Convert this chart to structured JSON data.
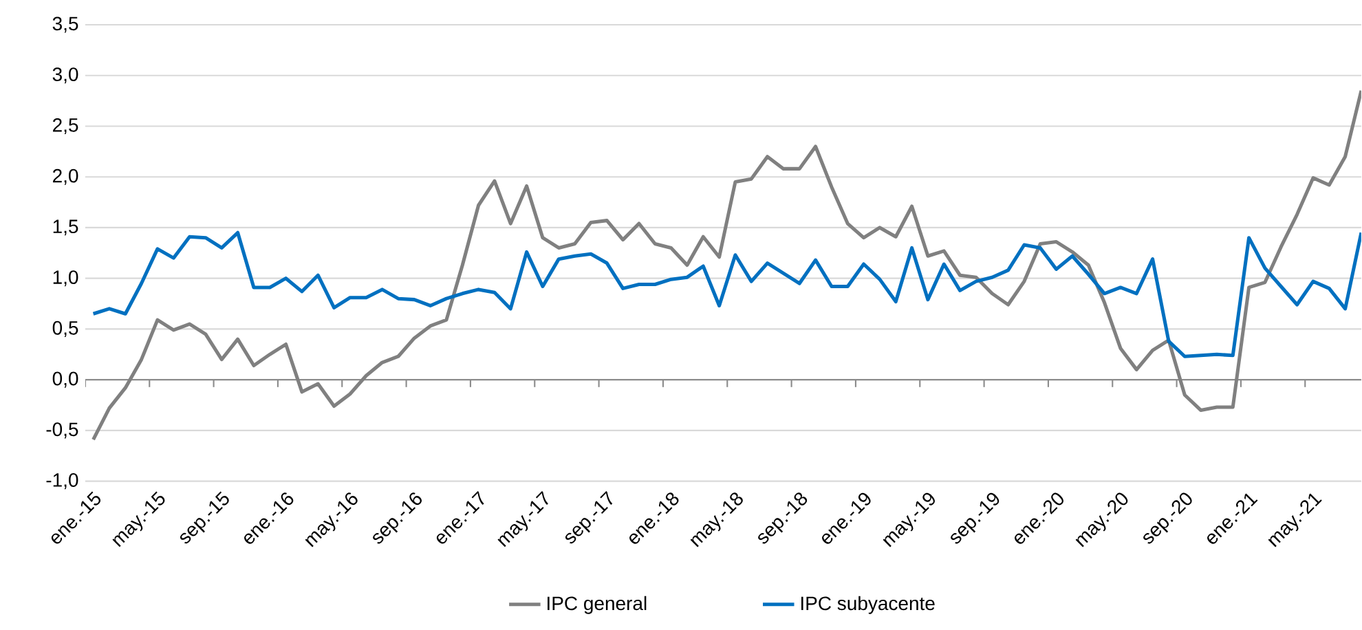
{
  "chart_data": {
    "type": "line",
    "categories": [
      "ene.-15",
      null,
      null,
      null,
      "may.-15",
      null,
      null,
      null,
      "sep.-15",
      null,
      null,
      null,
      "ene.-16",
      null,
      null,
      null,
      "may.-16",
      null,
      null,
      null,
      "sep.-16",
      null,
      null,
      null,
      "ene.-17",
      null,
      null,
      null,
      "may.-17",
      null,
      null,
      null,
      "sep.-17",
      null,
      null,
      null,
      "ene.-18",
      null,
      null,
      null,
      "may.-18",
      null,
      null,
      null,
      "sep.-18",
      null,
      null,
      null,
      "ene.-19",
      null,
      null,
      null,
      "may.-19",
      null,
      null,
      null,
      "sep.-19",
      null,
      null,
      null,
      "ene.-20",
      null,
      null,
      null,
      "may.-20",
      null,
      null,
      null,
      "sep.-20",
      null,
      null,
      null,
      "ene.-21",
      null,
      null,
      null,
      "may.-21",
      null,
      null,
      null
    ],
    "series": [
      {
        "name": "IPC general",
        "color": "#808080",
        "values": [
          -0.59,
          -0.28,
          -0.08,
          0.2,
          0.59,
          0.49,
          0.55,
          0.45,
          0.2,
          0.4,
          0.14,
          0.25,
          0.35,
          -0.12,
          -0.04,
          -0.26,
          -0.14,
          0.04,
          0.17,
          0.23,
          0.41,
          0.53,
          0.59,
          1.13,
          1.72,
          1.96,
          1.54,
          1.91,
          1.4,
          1.3,
          1.34,
          1.55,
          1.57,
          1.38,
          1.54,
          1.34,
          1.3,
          1.13,
          1.41,
          1.21,
          1.95,
          1.98,
          2.2,
          2.08,
          2.08,
          2.3,
          1.9,
          1.54,
          1.4,
          1.5,
          1.41,
          1.71,
          1.22,
          1.27,
          1.03,
          1.01,
          0.85,
          0.74,
          0.97,
          1.34,
          1.36,
          1.26,
          1.13,
          0.76,
          0.31,
          0.1,
          0.29,
          0.39,
          -0.15,
          -0.3,
          -0.27,
          -0.27,
          0.91,
          0.96,
          1.31,
          1.63,
          1.99,
          1.92,
          2.2,
          2.85
        ]
      },
      {
        "name": "IPC subyacente",
        "color": "#0070c0",
        "values": [
          0.65,
          0.7,
          0.65,
          0.95,
          1.29,
          1.2,
          1.41,
          1.4,
          1.3,
          1.45,
          0.91,
          0.91,
          1.0,
          0.87,
          1.03,
          0.71,
          0.81,
          0.81,
          0.89,
          0.8,
          0.79,
          0.73,
          0.8,
          0.85,
          0.89,
          0.86,
          0.7,
          1.26,
          0.92,
          1.19,
          1.22,
          1.24,
          1.15,
          0.9,
          0.94,
          0.94,
          0.99,
          1.01,
          1.12,
          0.73,
          1.23,
          0.97,
          1.15,
          1.05,
          0.95,
          1.18,
          0.92,
          0.92,
          1.14,
          0.99,
          0.77,
          1.3,
          0.79,
          1.14,
          0.88,
          0.97,
          1.01,
          1.08,
          1.33,
          1.3,
          1.09,
          1.22,
          1.04,
          0.85,
          0.91,
          0.85,
          1.19,
          0.38,
          0.23,
          0.24,
          0.25,
          0.24,
          1.4,
          1.1,
          0.92,
          0.74,
          0.97,
          0.9,
          0.7,
          1.45
        ]
      }
    ],
    "ylim": [
      -1,
      3.5
    ],
    "yticks": [
      {
        "value": -1,
        "label": "-1,0"
      },
      {
        "value": -0.5,
        "label": "-0,5"
      },
      {
        "value": 0,
        "label": "0,0"
      },
      {
        "value": 0.5,
        "label": "0,5"
      },
      {
        "value": 1,
        "label": "1,0"
      },
      {
        "value": 1.5,
        "label": "1,5"
      },
      {
        "value": 2,
        "label": "2,0"
      },
      {
        "value": 2.5,
        "label": "2,5"
      },
      {
        "value": 3,
        "label": "3,0"
      },
      {
        "value": 3.5,
        "label": "3,5"
      }
    ],
    "grid": "y",
    "legend": "bottom"
  }
}
